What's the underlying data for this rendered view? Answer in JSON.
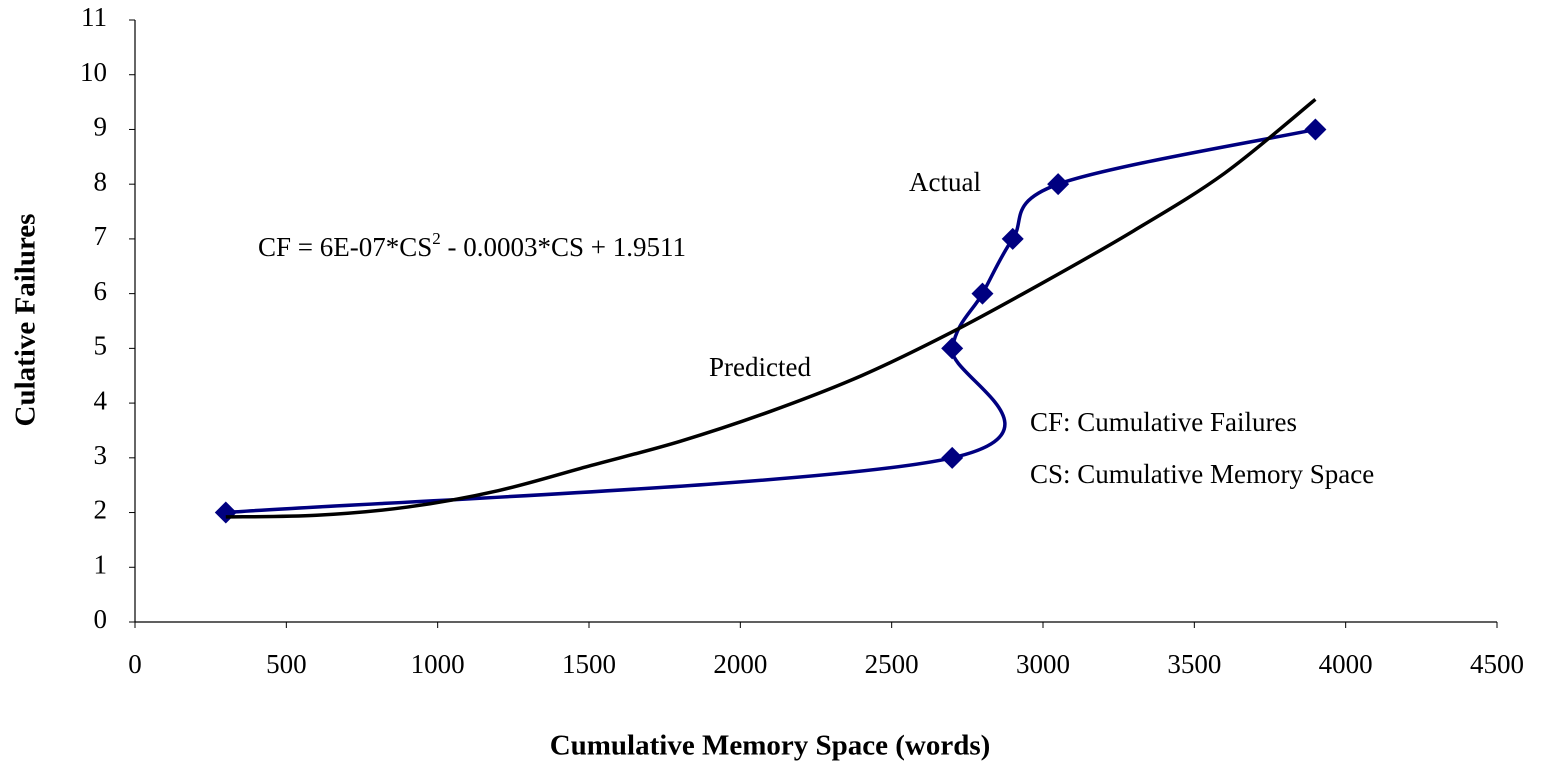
{
  "chart_data": {
    "type": "line",
    "x_label": "Cumulative Memory Space (words)",
    "y_label": "Culative Failures",
    "equation": [
      "CF = 6E-07*CS",
      "2",
      " - 0.0003*CS + 1.9511"
    ],
    "notes": [
      "CF: Cumulative Failures",
      "CS: Cumulative Memory Space"
    ],
    "xlim": [
      0,
      4500
    ],
    "xticks": [
      0,
      500,
      1000,
      1500,
      2000,
      2500,
      3000,
      3500,
      4000,
      4500
    ],
    "ylim": [
      0,
      11
    ],
    "yticks": [
      0,
      1,
      2,
      3,
      4,
      5,
      6,
      7,
      8,
      9,
      10,
      11
    ],
    "grid": false,
    "series": [
      {
        "name": "Actual",
        "color": "#000080",
        "marker": "diamond",
        "x": [
          300,
          2700,
          2700,
          2800,
          2900,
          3050,
          3900
        ],
        "values": [
          2,
          3,
          5,
          6,
          7,
          8,
          9
        ]
      },
      {
        "name": "Predicted",
        "color": "#000000",
        "x": [
          300,
          600,
          900,
          1200,
          1500,
          1800,
          2100,
          2400,
          2700,
          3000,
          3300,
          3600,
          3900
        ],
        "values": [
          1.92,
          1.95,
          2.1,
          2.4,
          2.85,
          3.3,
          3.85,
          4.5,
          5.3,
          6.2,
          7.15,
          8.2,
          9.55
        ]
      }
    ]
  }
}
